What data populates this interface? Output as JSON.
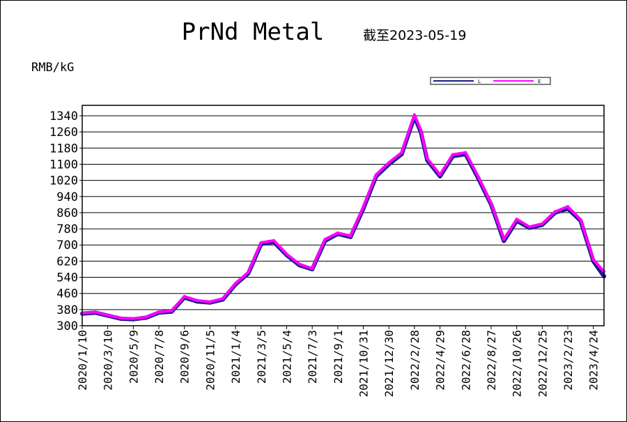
{
  "chart_data": {
    "type": "line",
    "title": "PrNd Metal",
    "subtitle": "截至2023-05-19",
    "ylabel": "RMB/kG",
    "xlabel": "",
    "ylim": [
      300,
      1340
    ],
    "grid": true,
    "legend_position": "top-right",
    "yticks": [
      300,
      380,
      460,
      540,
      620,
      700,
      780,
      860,
      940,
      1020,
      1100,
      1180,
      1260,
      1340
    ],
    "xticks": [
      "2020/1/10",
      "2020/3/10",
      "2020/5/9",
      "2020/7/8",
      "2020/9/6",
      "2020/11/5",
      "2021/1/4",
      "2021/3/5",
      "2021/5/4",
      "2021/7/3",
      "2021/9/1",
      "2021/10/31",
      "2021/12/30",
      "2022/2/28",
      "2022/4/29",
      "2022/6/28",
      "2022/8/27",
      "2022/10/26",
      "2022/12/25",
      "2023/2/23",
      "2023/4/24"
    ],
    "x_last": "2023/5/19",
    "series": [
      {
        "name": "L",
        "color": "#1a1a8c",
        "x": [
          "2020/1/10",
          "2020/2/10",
          "2020/3/10",
          "2020/4/10",
          "2020/5/9",
          "2020/6/8",
          "2020/7/8",
          "2020/8/7",
          "2020/9/6",
          "2020/10/6",
          "2020/11/5",
          "2020/12/5",
          "2021/1/4",
          "2021/2/3",
          "2021/3/5",
          "2021/4/4",
          "2021/5/4",
          "2021/6/3",
          "2021/7/3",
          "2021/8/2",
          "2021/9/1",
          "2021/10/1",
          "2021/10/31",
          "2021/11/30",
          "2021/12/30",
          "2022/1/29",
          "2022/2/28",
          "2022/3/15",
          "2022/3/30",
          "2022/4/29",
          "2022/5/29",
          "2022/6/28",
          "2022/7/28",
          "2022/8/27",
          "2022/9/26",
          "2022/10/26",
          "2022/11/25",
          "2022/12/25",
          "2023/1/24",
          "2023/2/23",
          "2023/3/25",
          "2023/4/24",
          "2023/5/19"
        ],
        "values": [
          360,
          365,
          350,
          335,
          332,
          340,
          365,
          370,
          440,
          420,
          415,
          430,
          505,
          560,
          705,
          715,
          650,
          600,
          580,
          720,
          755,
          740,
          880,
          1040,
          1100,
          1150,
          1335,
          1260,
          1120,
          1040,
          1140,
          1150,
          1030,
          900,
          720,
          820,
          785,
          800,
          860,
          880,
          820,
          620,
          545
        ]
      },
      {
        "name": "E",
        "color": "#ff00ff",
        "x": [
          "2020/1/10",
          "2020/2/10",
          "2020/3/10",
          "2020/4/10",
          "2020/5/9",
          "2020/6/8",
          "2020/7/8",
          "2020/8/7",
          "2020/9/6",
          "2020/10/6",
          "2020/11/5",
          "2020/12/5",
          "2021/1/4",
          "2021/2/3",
          "2021/3/5",
          "2021/4/4",
          "2021/5/4",
          "2021/6/3",
          "2021/7/3",
          "2021/8/2",
          "2021/9/1",
          "2021/10/1",
          "2021/10/31",
          "2021/11/30",
          "2021/12/30",
          "2022/1/29",
          "2022/2/28",
          "2022/3/15",
          "2022/3/30",
          "2022/4/29",
          "2022/5/29",
          "2022/6/28",
          "2022/7/28",
          "2022/8/27",
          "2022/9/26",
          "2022/10/26",
          "2022/11/25",
          "2022/12/25",
          "2023/1/24",
          "2023/2/23",
          "2023/3/25",
          "2023/4/24",
          "2023/5/19"
        ],
        "values": [
          362,
          368,
          352,
          338,
          335,
          343,
          368,
          374,
          445,
          425,
          418,
          435,
          510,
          565,
          712,
          722,
          655,
          605,
          583,
          728,
          760,
          745,
          888,
          1048,
          1108,
          1158,
          1345,
          1268,
          1128,
          1048,
          1148,
          1158,
          1038,
          905,
          728,
          828,
          790,
          805,
          865,
          890,
          826,
          628,
          568
        ]
      }
    ]
  }
}
